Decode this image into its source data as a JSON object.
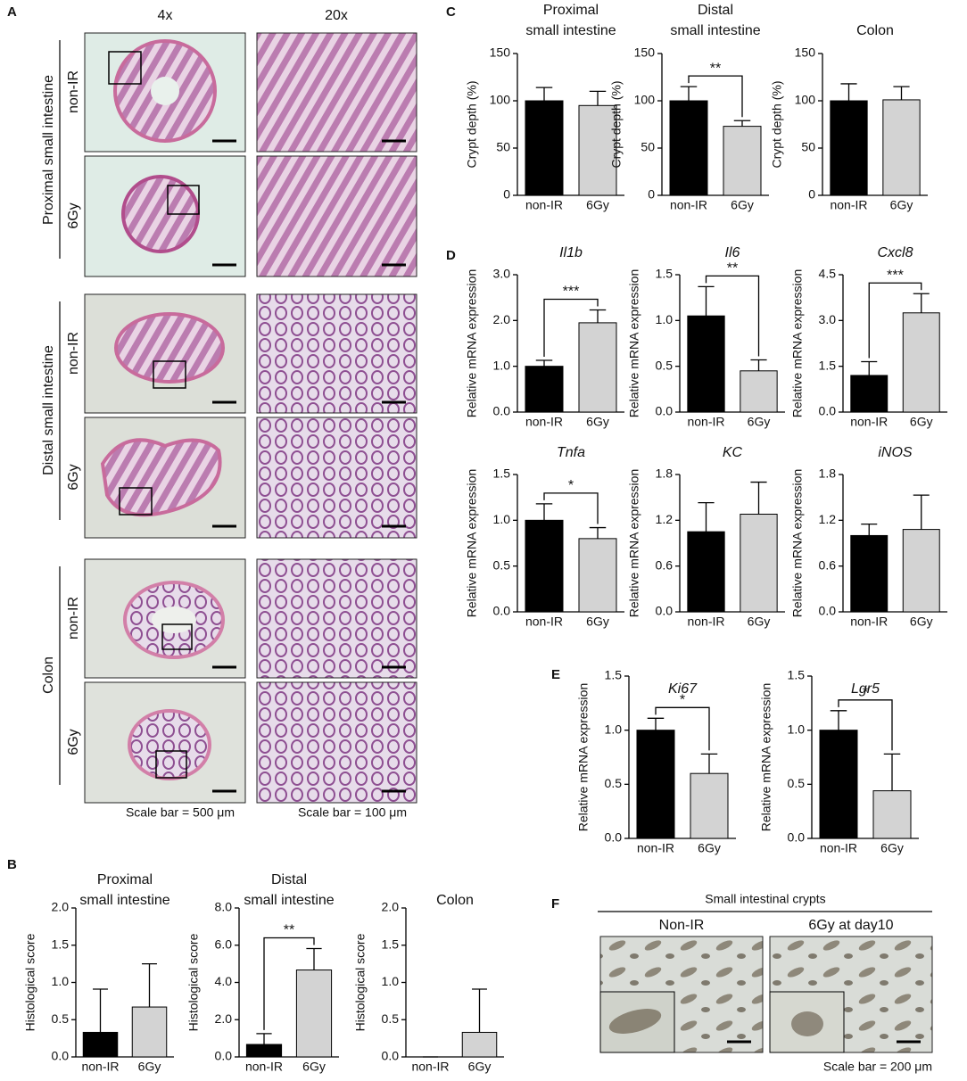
{
  "figure": {
    "panel_labels": [
      "A",
      "B",
      "C",
      "D",
      "E",
      "F"
    ],
    "panel_a": {
      "columns": [
        "4x",
        "20x"
      ],
      "rows": [
        {
          "name": "Proximal small intestine",
          "conditions": [
            "non-IR",
            "6Gy"
          ]
        },
        {
          "name": "Distal small intestine",
          "conditions": [
            "non-IR",
            "6Gy"
          ]
        },
        {
          "name": "Colon",
          "conditions": [
            "non-IR",
            "6Gy"
          ]
        }
      ],
      "scale_bars": [
        "Scale bar = 500 μm",
        "Scale bar = 100 μm"
      ]
    },
    "panel_f": {
      "title": "Small intestinal crypts",
      "columns": [
        "Non-IR",
        "6Gy at day10"
      ],
      "scale_bar": "Scale bar = 200 μm"
    }
  },
  "chart_data": [
    {
      "type": "bar",
      "title": [
        "Proximal",
        "small intestine"
      ],
      "y_label": "Histological score",
      "categories": [
        "non-IR",
        "6Gy"
      ],
      "values": [
        0.33,
        0.67
      ],
      "errors": [
        0.58,
        0.58
      ],
      "colors": [
        "#000000",
        "#d3d3d3"
      ],
      "ylim": [
        0,
        2
      ],
      "yticks": [
        {
          "value": 0,
          "label": "0.0"
        },
        {
          "value": 0.5,
          "label": "0.5"
        },
        {
          "value": 1,
          "label": "1.0"
        },
        {
          "value": 1.5,
          "label": "1.5"
        },
        {
          "value": 2,
          "label": "2.0"
        }
      ]
    },
    {
      "type": "bar",
      "title": [
        "Distal",
        "small intestine"
      ],
      "y_label": "Histological score",
      "categories": [
        "non-IR",
        "6Gy"
      ],
      "values": [
        0.67,
        4.67
      ],
      "errors": [
        0.58,
        1.15
      ],
      "colors": [
        "#000000",
        "#d3d3d3"
      ],
      "ylim": [
        0,
        8
      ],
      "yticks": [
        {
          "value": 0,
          "label": "0.0"
        },
        {
          "value": 2,
          "label": "2.0"
        },
        {
          "value": 4,
          "label": "4.0"
        },
        {
          "value": 6,
          "label": "6.0"
        },
        {
          "value": 8,
          "label": "8.0"
        }
      ],
      "significance": "**"
    },
    {
      "type": "bar",
      "title": [
        "Colon"
      ],
      "y_label": "Histological score",
      "categories": [
        "non-IR",
        "6Gy"
      ],
      "values": [
        0,
        0.33
      ],
      "errors": [
        0,
        0.58
      ],
      "colors": [
        "#000000",
        "#d3d3d3"
      ],
      "ylim": [
        0,
        2
      ],
      "yticks": [
        {
          "value": 0,
          "label": "0.0"
        },
        {
          "value": 0.5,
          "label": "0.5"
        },
        {
          "value": 1,
          "label": "1.0"
        },
        {
          "value": 1.5,
          "label": "1.5"
        },
        {
          "value": 2,
          "label": "2.0"
        }
      ]
    },
    {
      "type": "bar",
      "title": [
        "Proximal",
        "small intestine"
      ],
      "y_label": "Crypt depth (%)",
      "categories": [
        "non-IR",
        "6Gy"
      ],
      "values": [
        100,
        95
      ],
      "errors": [
        14,
        15
      ],
      "colors": [
        "#000000",
        "#d3d3d3"
      ],
      "ylim": [
        0,
        150
      ],
      "yticks": [
        0,
        50,
        100,
        150
      ]
    },
    {
      "type": "bar",
      "title": [
        "Distal",
        "small intestine"
      ],
      "y_label": "Crypt depth (%)",
      "categories": [
        "non-IR",
        "6Gy"
      ],
      "values": [
        100,
        73
      ],
      "errors": [
        15,
        6
      ],
      "colors": [
        "#000000",
        "#d3d3d3"
      ],
      "ylim": [
        0,
        150
      ],
      "yticks": [
        0,
        50,
        100,
        150
      ],
      "significance": "**"
    },
    {
      "type": "bar",
      "title": [
        "Colon"
      ],
      "y_label": "Crypt depth (%)",
      "categories": [
        "non-IR",
        "6Gy"
      ],
      "values": [
        100,
        101
      ],
      "errors": [
        18,
        14
      ],
      "colors": [
        "#000000",
        "#d3d3d3"
      ],
      "ylim": [
        0,
        150
      ],
      "yticks": [
        0,
        50,
        100,
        150
      ]
    },
    {
      "type": "bar",
      "title": [
        "Il1b"
      ],
      "title_italic": true,
      "y_label": "Relative mRNA expression",
      "categories": [
        "non-IR",
        "6Gy"
      ],
      "values": [
        1.0,
        1.95
      ],
      "errors": [
        0.13,
        0.28
      ],
      "colors": [
        "#000000",
        "#d3d3d3"
      ],
      "ylim": [
        0,
        3
      ],
      "yticks": [
        {
          "value": 0,
          "label": "0.0"
        },
        {
          "value": 1,
          "label": "1.0"
        },
        {
          "value": 2,
          "label": "2.0"
        },
        {
          "value": 3,
          "label": "3.0"
        }
      ],
      "significance": "***"
    },
    {
      "type": "bar",
      "title": [
        "Il6"
      ],
      "title_italic": true,
      "y_label": "Relative mRNA expression",
      "categories": [
        "non-IR",
        "6Gy"
      ],
      "values": [
        1.05,
        0.45
      ],
      "errors": [
        0.32,
        0.12
      ],
      "colors": [
        "#000000",
        "#d3d3d3"
      ],
      "ylim": [
        0,
        1.5
      ],
      "yticks": [
        {
          "value": 0,
          "label": "0.0"
        },
        {
          "value": 0.5,
          "label": "0.5"
        },
        {
          "value": 1,
          "label": "1.0"
        },
        {
          "value": 1.5,
          "label": "1.5"
        }
      ],
      "significance": "**"
    },
    {
      "type": "bar",
      "title": [
        "Cxcl8"
      ],
      "title_italic": true,
      "y_label": "Relative mRNA expression",
      "categories": [
        "non-IR",
        "6Gy"
      ],
      "values": [
        1.2,
        3.25
      ],
      "errors": [
        0.45,
        0.63
      ],
      "colors": [
        "#000000",
        "#d3d3d3"
      ],
      "ylim": [
        0,
        4.5
      ],
      "yticks": [
        {
          "value": 0,
          "label": "0.0"
        },
        1.5,
        {
          "value": 3,
          "label": "3.0"
        },
        4.5
      ],
      "significance": "***"
    },
    {
      "type": "bar",
      "title": [
        "Tnfa"
      ],
      "title_italic": true,
      "y_label": "Relative mRNA expression",
      "categories": [
        "non-IR",
        "6Gy"
      ],
      "values": [
        1.0,
        0.8
      ],
      "errors": [
        0.18,
        0.12
      ],
      "colors": [
        "#000000",
        "#d3d3d3"
      ],
      "ylim": [
        0,
        1.5
      ],
      "yticks": [
        {
          "value": 0,
          "label": "0.0"
        },
        0.5,
        {
          "value": 1,
          "label": "1.0"
        },
        1.5
      ],
      "significance": "*"
    },
    {
      "type": "bar",
      "title": [
        "KC"
      ],
      "title_italic": true,
      "y_label": "Relative mRNA expression",
      "categories": [
        "non-IR",
        "6Gy"
      ],
      "values": [
        1.05,
        1.28
      ],
      "errors": [
        0.38,
        0.42
      ],
      "colors": [
        "#000000",
        "#d3d3d3"
      ],
      "ylim": [
        0,
        1.8
      ],
      "yticks": [
        {
          "value": 0,
          "label": "0.0"
        },
        0.6,
        1.2,
        1.8
      ]
    },
    {
      "type": "bar",
      "title": [
        "iNOS"
      ],
      "title_italic": true,
      "y_label": "Relative mRNA expression",
      "categories": [
        "non-IR",
        "6Gy"
      ],
      "values": [
        1.0,
        1.08
      ],
      "errors": [
        0.15,
        0.45
      ],
      "colors": [
        "#000000",
        "#d3d3d3"
      ],
      "ylim": [
        0,
        1.8
      ],
      "yticks": [
        {
          "value": 0,
          "label": "0.0"
        },
        0.6,
        1.2,
        1.8
      ]
    },
    {
      "type": "bar",
      "title": [
        "Ki67"
      ],
      "title_italic": true,
      "y_label": "Relative mRNA expression",
      "categories": [
        "non-IR",
        "6Gy"
      ],
      "values": [
        1.0,
        0.6
      ],
      "errors": [
        0.11,
        0.18
      ],
      "colors": [
        "#000000",
        "#d3d3d3"
      ],
      "ylim": [
        0,
        1.5
      ],
      "yticks": [
        {
          "value": 0,
          "label": "0.0"
        },
        0.5,
        {
          "value": 1,
          "label": "1.0"
        },
        1.5
      ],
      "significance": "*"
    },
    {
      "type": "bar",
      "title": [
        "Lgr5"
      ],
      "title_italic": true,
      "y_label": "Relative mRNA expression",
      "categories": [
        "non-IR",
        "6Gy"
      ],
      "values": [
        1.0,
        0.44
      ],
      "errors": [
        0.18,
        0.34
      ],
      "colors": [
        "#000000",
        "#d3d3d3"
      ],
      "ylim": [
        0,
        1.5
      ],
      "yticks": [
        {
          "value": 0,
          "label": "0.0"
        },
        0.5,
        {
          "value": 1,
          "label": "1.0"
        },
        1.5
      ],
      "significance": "*"
    }
  ]
}
